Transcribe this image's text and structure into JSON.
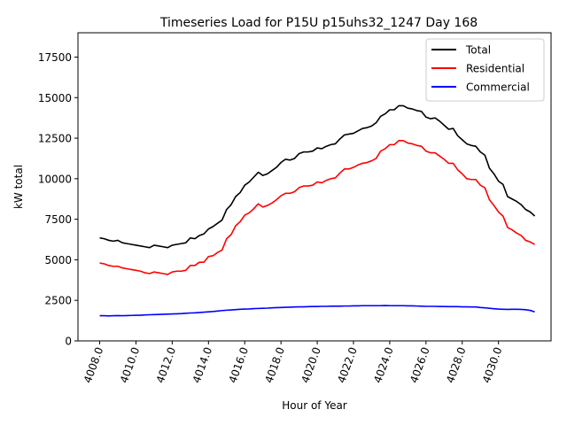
{
  "chart_data": {
    "type": "line",
    "title": "Timeseries Load for P15U p15uhs32_1247  Day 168",
    "xlabel": "Hour of Year",
    "ylabel": "kW total",
    "xlim": [
      4006.8,
      4032.9
    ],
    "ylim": [
      0,
      19000
    ],
    "x_ticks": [
      4008,
      4010,
      4012,
      4014,
      4016,
      4018,
      4020,
      4022,
      4024,
      4026,
      4028,
      4030
    ],
    "x_tick_labels": [
      "4008.0",
      "4010.0",
      "4012.0",
      "4014.0",
      "4016.0",
      "4018.0",
      "4020.0",
      "4022.0",
      "4024.0",
      "4026.0",
      "4028.0",
      "4030.0"
    ],
    "y_ticks": [
      0,
      2500,
      5000,
      7500,
      10000,
      12500,
      15000,
      17500
    ],
    "y_tick_labels": [
      "0",
      "2500",
      "5000",
      "7500",
      "10000",
      "12500",
      "15000",
      "17500"
    ],
    "grid": false,
    "legend_position": "top-right",
    "x_start": 4008,
    "x_step": 0.25,
    "series": [
      {
        "name": "Total",
        "color": "#000000",
        "values": [
          6350,
          6300,
          6200,
          6150,
          6200,
          6050,
          6000,
          5950,
          5900,
          5850,
          5800,
          5750,
          5900,
          5850,
          5800,
          5750,
          5900,
          5950,
          6000,
          6050,
          6350,
          6300,
          6500,
          6600,
          6900,
          7050,
          7250,
          7450,
          8100,
          8400,
          8900,
          9150,
          9600,
          9800,
          10100,
          10400,
          10200,
          10300,
          10500,
          10700,
          11000,
          11200,
          11150,
          11250,
          11550,
          11650,
          11650,
          11700,
          11900,
          11850,
          12000,
          12100,
          12150,
          12450,
          12700,
          12750,
          12800,
          12950,
          13100,
          13150,
          13250,
          13450,
          13850,
          14000,
          14250,
          14250,
          14500,
          14500,
          14350,
          14300,
          14200,
          14150,
          13800,
          13700,
          13750,
          13550,
          13300,
          13050,
          13100,
          12650,
          12400,
          12150,
          12050,
          12000,
          11650,
          11450,
          10650,
          10300,
          9850,
          9650,
          8900,
          8750,
          8600,
          8400,
          8100,
          7950,
          7700
        ],
        "x_end": 4031.75
      },
      {
        "name": "Residential",
        "color": "#ff0000",
        "values": [
          4800,
          4750,
          4650,
          4600,
          4600,
          4500,
          4450,
          4400,
          4350,
          4300,
          4200,
          4150,
          4250,
          4200,
          4150,
          4100,
          4250,
          4300,
          4300,
          4350,
          4650,
          4650,
          4850,
          4850,
          5200,
          5250,
          5450,
          5600,
          6300,
          6550,
          7100,
          7350,
          7750,
          7900,
          8150,
          8450,
          8250,
          8350,
          8500,
          8700,
          8950,
          9100,
          9100,
          9200,
          9450,
          9550,
          9550,
          9600,
          9800,
          9750,
          9900,
          10000,
          10050,
          10350,
          10600,
          10600,
          10700,
          10850,
          10950,
          11000,
          11100,
          11250,
          11700,
          11850,
          12100,
          12100,
          12350,
          12350,
          12200,
          12150,
          12050,
          12000,
          11700,
          11600,
          11600,
          11400,
          11200,
          10950,
          10950,
          10550,
          10300,
          10000,
          9950,
          9950,
          9600,
          9450,
          8700,
          8350,
          7950,
          7700,
          7000,
          6850,
          6650,
          6500,
          6200,
          6100,
          5950
        ],
        "x_end": 4031.75
      },
      {
        "name": "Commercial",
        "color": "#0000ff",
        "values": [
          1550,
          1550,
          1540,
          1550,
          1560,
          1550,
          1560,
          1570,
          1580,
          1580,
          1600,
          1610,
          1620,
          1630,
          1640,
          1650,
          1660,
          1670,
          1680,
          1700,
          1720,
          1730,
          1750,
          1770,
          1790,
          1810,
          1840,
          1870,
          1890,
          1910,
          1930,
          1950,
          1960,
          1970,
          1990,
          2000,
          2010,
          2020,
          2040,
          2050,
          2060,
          2070,
          2080,
          2090,
          2100,
          2100,
          2110,
          2120,
          2120,
          2130,
          2130,
          2140,
          2140,
          2140,
          2150,
          2150,
          2160,
          2160,
          2170,
          2170,
          2170,
          2170,
          2170,
          2180,
          2170,
          2170,
          2170,
          2170,
          2160,
          2160,
          2150,
          2140,
          2130,
          2130,
          2130,
          2120,
          2120,
          2110,
          2110,
          2110,
          2100,
          2100,
          2090,
          2090,
          2060,
          2040,
          2010,
          1980,
          1960,
          1950,
          1940,
          1950,
          1950,
          1940,
          1920,
          1880,
          1790
        ],
        "x_end": 4031.75
      }
    ]
  }
}
